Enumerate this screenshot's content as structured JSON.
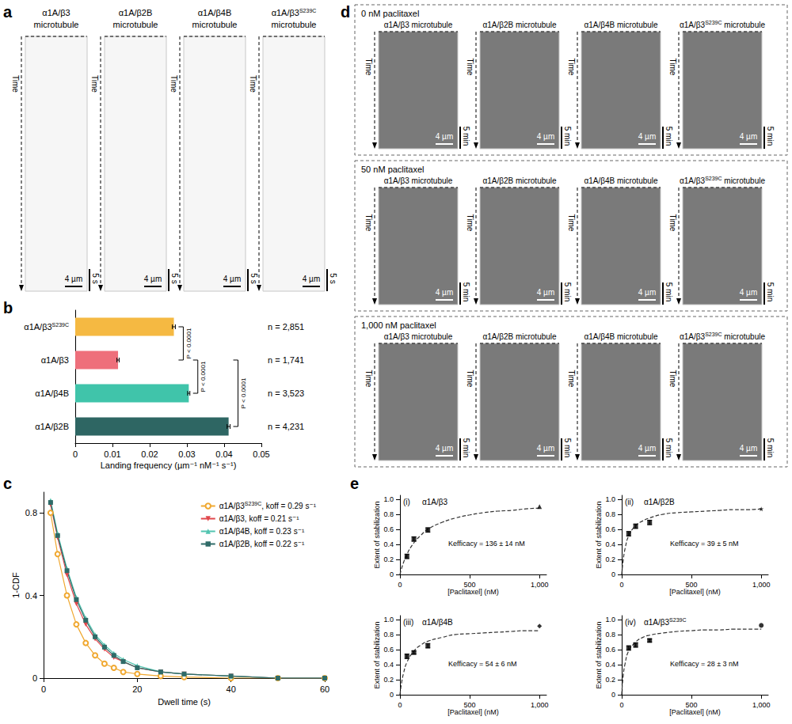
{
  "panel_a": {
    "letter": "a",
    "time_label": "Time",
    "scale_x": "4 µm",
    "scale_t": "5 s",
    "kymographs": [
      "α1A/β3 microtubule",
      "α1A/β2B microtubule",
      "α1A/β4B microtubule",
      "α1A/β3S239C microtubule"
    ]
  },
  "panel_d": {
    "letter": "d",
    "time_label": "Time",
    "scale_x": "4 µm",
    "scale_t": "5 min",
    "rows": [
      {
        "title": "0 nM paclitaxel",
        "kymographs": [
          "α1A/β3 microtubule",
          "α1A/β2B microtubule",
          "α1A/β4B microtubule",
          "α1A/β3S239C microtubule"
        ]
      },
      {
        "title": "50 nM paclitaxel",
        "kymographs": [
          "α1A/β3 microtubule",
          "α1A/β2B microtubule",
          "α1A/β4B microtubule",
          "α1A/β3S239C microtubule"
        ]
      },
      {
        "title": "1,000 nM paclitaxel",
        "kymographs": [
          "α1A/β3 microtubule",
          "α1A/β2B microtubule",
          "α1A/β4B microtubule",
          "α1A/β3S239C microtubule"
        ]
      }
    ]
  },
  "chart_data": [
    {
      "panel": "b",
      "type": "bar",
      "orientation": "horizontal",
      "categories": [
        "α1A/β3S239C",
        "α1A/β3",
        "α1A/β4B",
        "α1A/β2B"
      ],
      "values": [
        0.0265,
        0.0115,
        0.0305,
        0.0412
      ],
      "errors": [
        0.0004,
        0.0003,
        0.0003,
        0.0004
      ],
      "colors": [
        "#f5b942",
        "#ee6f7b",
        "#40c4aa",
        "#2e6663"
      ],
      "annotations": [
        "n = 2,851",
        "n = 1,741",
        "n = 3,523",
        "n = 4,231"
      ],
      "comparisons": [
        {
          "between": [
            0,
            1
          ],
          "label": "P < 0.0001"
        },
        {
          "between": [
            1,
            2
          ],
          "label": "P < 0.0001"
        },
        {
          "between": [
            1,
            3
          ],
          "label": "P < 0.0001"
        }
      ],
      "xlabel": "Landing frequency (µm⁻¹ nM⁻¹ s⁻¹)",
      "xlim": [
        0,
        0.05
      ],
      "xticks": [
        0,
        0.01,
        0.02,
        0.03,
        0.04,
        0.05
      ],
      "grid": false
    },
    {
      "panel": "c",
      "type": "line",
      "x": [
        1.5,
        3,
        5,
        7,
        9,
        11,
        13,
        15,
        17,
        20,
        25,
        30,
        40,
        50,
        60
      ],
      "series": [
        {
          "name": "α1A/β3S239C, koff = 0.29 s⁻¹",
          "color": "#f0a830",
          "marker": "circle_open",
          "values": [
            0.8,
            0.6,
            0.4,
            0.26,
            0.17,
            0.11,
            0.07,
            0.05,
            0.03,
            0.02,
            0.01,
            0.005,
            0,
            0,
            0
          ]
        },
        {
          "name": "α1A/β3, koff = 0.21 s⁻¹",
          "color": "#e0474c",
          "marker": "triangle_down",
          "values": [
            0.84,
            0.68,
            0.5,
            0.36,
            0.26,
            0.19,
            0.14,
            0.1,
            0.08,
            0.05,
            0.03,
            0.02,
            0.01,
            0,
            0
          ]
        },
        {
          "name": "α1A/β4B, koff = 0.23 s⁻¹",
          "color": "#52c4b0",
          "marker": "triangle_up",
          "values": [
            0.86,
            0.7,
            0.53,
            0.39,
            0.29,
            0.21,
            0.16,
            0.12,
            0.09,
            0.06,
            0.03,
            0.02,
            0.01,
            0,
            0
          ]
        },
        {
          "name": "α1A/β2B, koff = 0.22 s⁻¹",
          "color": "#2f6b68",
          "marker": "square",
          "values": [
            0.85,
            0.69,
            0.52,
            0.38,
            0.28,
            0.2,
            0.15,
            0.11,
            0.08,
            0.05,
            0.03,
            0.02,
            0.01,
            0,
            0
          ]
        }
      ],
      "xlabel": "Dwell time (s)",
      "ylabel": "1-CDF",
      "xlim": [
        0,
        60
      ],
      "xticks": [
        0,
        20,
        40,
        60
      ],
      "ylim": [
        0,
        0.9
      ],
      "yticks": [
        0,
        0.4,
        0.8
      ],
      "legend": "upper right",
      "grid": false
    },
    {
      "panel": "e",
      "label": "(i)",
      "title": "α1A/β3",
      "type": "scatter",
      "annotation": "Kefficacy = 136 ± 14 nM",
      "xlabel": "[Paclitaxel] (nM)",
      "ylabel": "Extent of stabilization",
      "xlim": [
        0,
        1050
      ],
      "xticks": [
        0,
        500,
        {
          "value": 1000,
          "label": "1,000"
        }
      ],
      "ylim": [
        0,
        1.05
      ],
      "yticks": [
        0,
        0.2,
        0.4,
        0.6,
        0.8,
        {
          "value": 1,
          "label": "1.0"
        }
      ],
      "grid": false,
      "series": [
        {
          "type": "scatter",
          "marker": "square",
          "color": "#000000",
          "x": [
            50,
            100,
            200
          ],
          "values": [
            0.24,
            0.47,
            0.59
          ],
          "errors": [
            0.03,
            0.03,
            0.03
          ]
        },
        {
          "type": "scatter",
          "marker": "triangle",
          "color": "#000000",
          "x": [
            1000
          ],
          "values": [
            0.9
          ]
        },
        {
          "type": "line",
          "line_style": "dashed",
          "color": "#333333",
          "x": [
            0,
            10,
            25,
            50,
            100,
            150,
            200,
            300,
            400,
            500,
            600,
            700,
            800,
            900,
            1000
          ],
          "values": [
            0,
            0.07,
            0.155,
            0.27,
            0.42,
            0.52,
            0.6,
            0.69,
            0.75,
            0.79,
            0.82,
            0.84,
            0.85,
            0.87,
            0.88
          ]
        }
      ]
    },
    {
      "panel": "e",
      "label": "(ii)",
      "title": "α1A/β2B",
      "type": "scatter",
      "annotation": "Kefficacy = 39 ± 5 nM",
      "xlabel": "[Paclitaxel] (nM)",
      "ylabel": "Extent of stabilization",
      "xlim": [
        0,
        1050
      ],
      "xticks": [
        0,
        500,
        {
          "value": 1000,
          "label": "1,000"
        }
      ],
      "ylim": [
        0,
        1.05
      ],
      "yticks": [
        0,
        0.2,
        0.4,
        0.6,
        0.8,
        {
          "value": 1,
          "label": "1.0"
        }
      ],
      "grid": false,
      "series": [
        {
          "type": "scatter",
          "marker": "square",
          "color": "#000000",
          "x": [
            50,
            100,
            200
          ],
          "values": [
            0.54,
            0.64,
            0.69
          ],
          "errors": [
            0.03,
            0.03,
            0.03
          ]
        },
        {
          "type": "scatter",
          "marker": "star",
          "color": "#000000",
          "x": [
            1000
          ],
          "values": [
            0.87
          ]
        },
        {
          "type": "line",
          "line_style": "dashed",
          "color": "#333333",
          "x": [
            0,
            10,
            25,
            50,
            100,
            150,
            200,
            300,
            400,
            500,
            600,
            700,
            800,
            900,
            1000
          ],
          "values": [
            0,
            0.18,
            0.35,
            0.51,
            0.65,
            0.71,
            0.75,
            0.8,
            0.82,
            0.83,
            0.84,
            0.85,
            0.86,
            0.86,
            0.87
          ]
        }
      ]
    },
    {
      "panel": "e",
      "label": "(iii)",
      "title": "α1A/β4B",
      "type": "scatter",
      "annotation": "Kefficacy = 54 ± 6 nM",
      "xlabel": "[Paclitaxel] (nM)",
      "ylabel": "Extent of stabilization",
      "xlim": [
        0,
        1050
      ],
      "xticks": [
        0,
        500,
        {
          "value": 1000,
          "label": "1,000"
        }
      ],
      "ylim": [
        0,
        1.05
      ],
      "yticks": [
        0,
        0.2,
        0.4,
        0.6,
        0.8,
        {
          "value": 1,
          "label": "1.0"
        }
      ],
      "grid": false,
      "series": [
        {
          "type": "scatter",
          "marker": "square",
          "color": "#000000",
          "x": [
            50,
            100,
            200
          ],
          "values": [
            0.51,
            0.56,
            0.65
          ],
          "errors": [
            0.03,
            0.02,
            0.03
          ]
        },
        {
          "type": "scatter",
          "marker": "diamond",
          "color": "#000000",
          "x": [
            1000
          ],
          "values": [
            0.91
          ]
        },
        {
          "type": "line",
          "line_style": "dashed",
          "color": "#333333",
          "x": [
            0,
            10,
            25,
            50,
            100,
            150,
            200,
            300,
            400,
            500,
            600,
            700,
            800,
            900,
            1000
          ],
          "values": [
            0,
            0.14,
            0.28,
            0.43,
            0.58,
            0.66,
            0.71,
            0.76,
            0.8,
            0.81,
            0.82,
            0.83,
            0.84,
            0.85,
            0.85
          ]
        }
      ]
    },
    {
      "panel": "e",
      "label": "(iv)",
      "title": "α1A/β3S239C",
      "type": "scatter",
      "annotation": "Kefficacy = 28 ± 3 nM",
      "xlabel": "[Paclitaxel] (nM)",
      "ylabel": "Extent of stabilization",
      "xlim": [
        0,
        1050
      ],
      "xticks": [
        0,
        500,
        {
          "value": 1000,
          "label": "1,000"
        }
      ],
      "ylim": [
        0,
        1.05
      ],
      "yticks": [
        0,
        0.2,
        0.4,
        0.6,
        0.8,
        {
          "value": 1,
          "label": "1.0"
        }
      ],
      "grid": false,
      "series": [
        {
          "type": "scatter",
          "marker": "square",
          "color": "#000000",
          "x": [
            50,
            100,
            200
          ],
          "values": [
            0.62,
            0.66,
            0.72
          ],
          "errors": [
            0.03,
            0.03,
            0.02
          ]
        },
        {
          "type": "scatter",
          "marker": "circle",
          "color": "#000000",
          "x": [
            1000
          ],
          "values": [
            0.92
          ]
        },
        {
          "type": "line",
          "line_style": "dashed",
          "color": "#333333",
          "x": [
            0,
            10,
            25,
            50,
            100,
            150,
            200,
            300,
            400,
            500,
            600,
            700,
            800,
            900,
            1000
          ],
          "values": [
            0,
            0.24,
            0.42,
            0.58,
            0.7,
            0.76,
            0.79,
            0.82,
            0.84,
            0.85,
            0.86,
            0.86,
            0.87,
            0.87,
            0.87
          ]
        }
      ]
    }
  ]
}
